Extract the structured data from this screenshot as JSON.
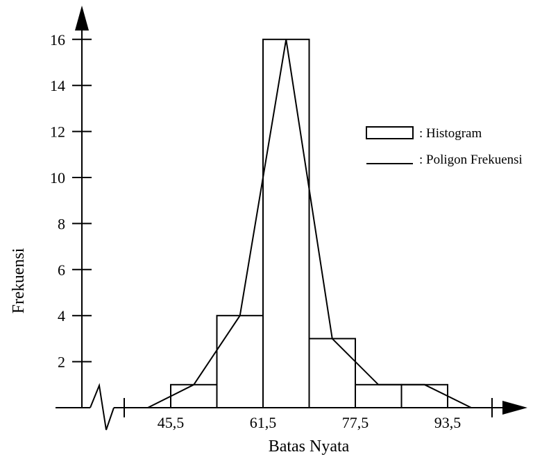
{
  "chart_data": {
    "type": "bar",
    "title": "",
    "xlabel": "Batas Nyata",
    "ylabel": "Frekuensi",
    "x_tick_labels": [
      "45,5",
      "61,5",
      "77,5",
      "93,5"
    ],
    "y_tick_labels": [
      "2",
      "4",
      "6",
      "8",
      "10",
      "12",
      "14",
      "16"
    ],
    "ylim": [
      0,
      16
    ],
    "bin_edges": [
      45.5,
      53.5,
      61.5,
      69.5,
      77.5,
      85.5,
      93.5
    ],
    "bins": [
      {
        "lower": 45.5,
        "upper": 53.5,
        "frequency": 1
      },
      {
        "lower": 53.5,
        "upper": 61.5,
        "frequency": 4
      },
      {
        "lower": 61.5,
        "upper": 69.5,
        "frequency": 16
      },
      {
        "lower": 69.5,
        "upper": 77.5,
        "frequency": 3
      },
      {
        "lower": 77.5,
        "upper": 85.5,
        "frequency": 1
      },
      {
        "lower": 85.5,
        "upper": 93.5,
        "frequency": 1
      }
    ],
    "polygon_points": [
      {
        "x": 41.5,
        "y": 0
      },
      {
        "x": 49.5,
        "y": 1
      },
      {
        "x": 57.5,
        "y": 4
      },
      {
        "x": 65.5,
        "y": 16
      },
      {
        "x": 73.5,
        "y": 3
      },
      {
        "x": 81.5,
        "y": 1
      },
      {
        "x": 89.5,
        "y": 1
      },
      {
        "x": 97.5,
        "y": 0
      }
    ],
    "legend": {
      "position": "right",
      "items": [
        {
          "label": ": Histogram",
          "symbol": "rectangle"
        },
        {
          "label": ": Poligon Frekuensi",
          "symbol": "line"
        }
      ]
    },
    "axis_break": true,
    "grid": false,
    "color": "#000000"
  }
}
